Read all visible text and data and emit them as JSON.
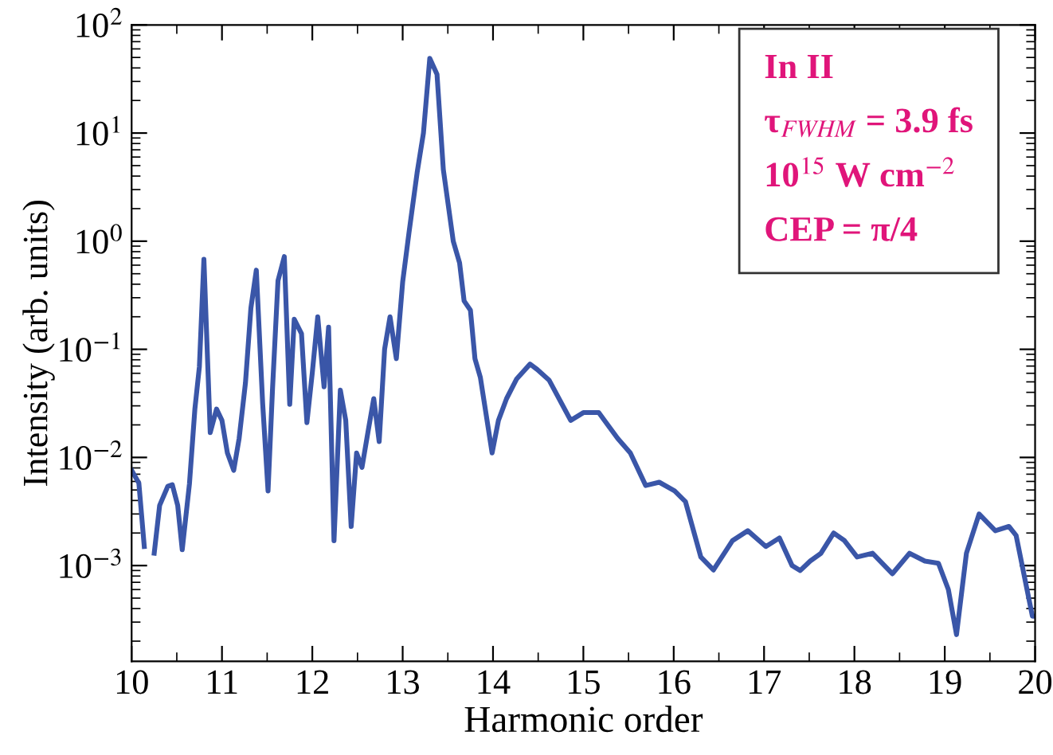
{
  "chart_data": {
    "type": "line",
    "xlabel": "Harmonic order",
    "ylabel": "Intensity (arb. units)",
    "series": [
      {
        "color": "#3a56a8",
        "x": [
          10.0,
          10.08,
          10.14,
          10.17,
          10.23,
          10.25,
          10.31,
          10.4,
          10.45,
          10.51,
          10.56,
          10.64,
          10.7,
          10.75,
          10.8,
          10.87,
          10.94,
          11.0,
          11.06,
          11.13,
          11.19,
          11.26,
          11.32,
          11.38,
          11.45,
          11.51,
          11.56,
          11.62,
          11.69,
          11.75,
          11.8,
          11.88,
          11.94,
          12.0,
          12.06,
          12.13,
          12.18,
          12.24,
          12.31,
          12.37,
          12.43,
          12.49,
          12.55,
          12.62,
          12.68,
          12.74,
          12.8,
          12.86,
          12.93,
          13.0,
          13.07,
          13.16,
          13.23,
          13.3,
          13.38,
          13.45,
          13.56,
          13.63,
          13.68,
          13.75,
          13.8,
          13.86,
          13.99,
          14.06,
          14.15,
          14.26,
          14.41,
          14.49,
          14.62,
          14.86,
          15.0,
          15.17,
          15.38,
          15.52,
          15.69,
          15.84,
          16.01,
          16.13,
          16.3,
          16.44,
          16.65,
          16.82,
          17.02,
          17.17,
          17.31,
          17.4,
          17.51,
          17.63,
          17.77,
          17.89,
          18.03,
          18.2,
          18.42,
          18.61,
          18.78,
          18.93,
          19.04,
          19.13,
          19.24,
          19.38,
          19.56,
          19.71,
          19.79,
          19.97,
          20.0
        ],
        "values": [
          0.0076,
          0.0058,
          0.0015,
          null,
          null,
          0.0013,
          0.0036,
          0.0054,
          0.0056,
          0.0036,
          0.0014,
          0.0057,
          0.028,
          0.069,
          0.68,
          0.017,
          0.028,
          0.022,
          0.011,
          0.0076,
          0.015,
          0.049,
          0.24,
          0.54,
          0.032,
          0.0049,
          0.044,
          0.43,
          0.72,
          0.031,
          0.19,
          0.14,
          0.021,
          0.061,
          0.2,
          0.045,
          0.16,
          0.0017,
          0.042,
          0.022,
          0.0023,
          0.011,
          0.0081,
          0.018,
          0.035,
          0.014,
          0.1,
          0.2,
          0.082,
          0.42,
          1.2,
          4.3,
          10,
          49,
          35,
          4.6,
          1.0,
          0.63,
          0.28,
          0.23,
          0.082,
          0.055,
          0.011,
          0.022,
          0.035,
          0.053,
          0.073,
          0.065,
          0.052,
          0.022,
          0.026,
          0.026,
          0.015,
          0.011,
          0.0055,
          0.0059,
          0.0049,
          0.0039,
          0.0012,
          0.00091,
          0.0017,
          0.0021,
          0.0015,
          0.0018,
          0.001,
          0.0009,
          0.0011,
          0.0013,
          0.002,
          0.0017,
          0.0012,
          0.0013,
          0.00084,
          0.0013,
          0.0011,
          0.00105,
          0.0006,
          0.00023,
          0.0013,
          0.003,
          0.0021,
          0.0023,
          0.0019,
          0.00034,
          0.00034
        ]
      }
    ],
    "log": "y",
    "xlim": [
      10,
      20
    ],
    "xticks": [
      10,
      11,
      12,
      13,
      14,
      15,
      16,
      17,
      18,
      19,
      20
    ],
    "ylim": [
      0.00013,
      100
    ],
    "yticks": [
      {
        "value": 0.001,
        "label": "10$^{−3}$"
      },
      {
        "value": 0.01,
        "label": "10$^{−2}$"
      },
      {
        "value": 0.1,
        "label": "10$^{−1}$"
      },
      {
        "value": 1,
        "label": "10$^{0}$"
      },
      {
        "value": 10,
        "label": "10$^{1}$"
      },
      {
        "value": 100,
        "label": "10$^{2}$"
      }
    ],
    "annotations": [
      "In II",
      "τ$_{FWHM}$ = 3.9 fs",
      "10$^{15}$ W cm$^{−2}$",
      "CEP = π/4"
    ],
    "grid": false,
    "legend": false,
    "marker": "none",
    "line_style": "solid"
  }
}
